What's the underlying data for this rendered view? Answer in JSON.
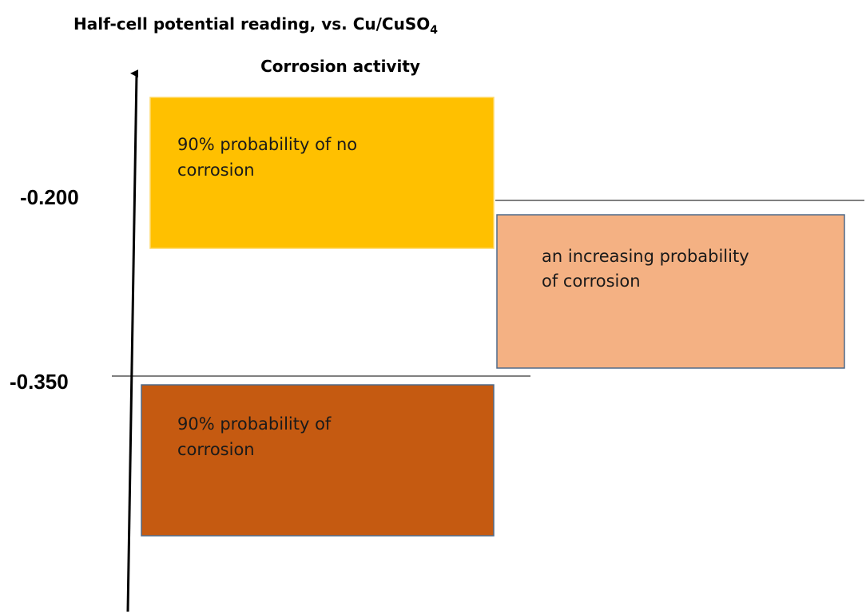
{
  "header": {
    "title": "Half-cell potential reading, vs. Cu/CuSO",
    "title_subscript": "4",
    "subtitle": "Corrosion activity"
  },
  "levels": [
    "-0.200",
    "-0.350"
  ],
  "boxes": [
    {
      "lines": [
        "90% probability of no",
        "corrosion"
      ]
    },
    {
      "lines": [
        "an increasing probability",
        "of corrosion"
      ]
    },
    {
      "lines": [
        "90% probability of",
        "corrosion"
      ]
    }
  ]
}
